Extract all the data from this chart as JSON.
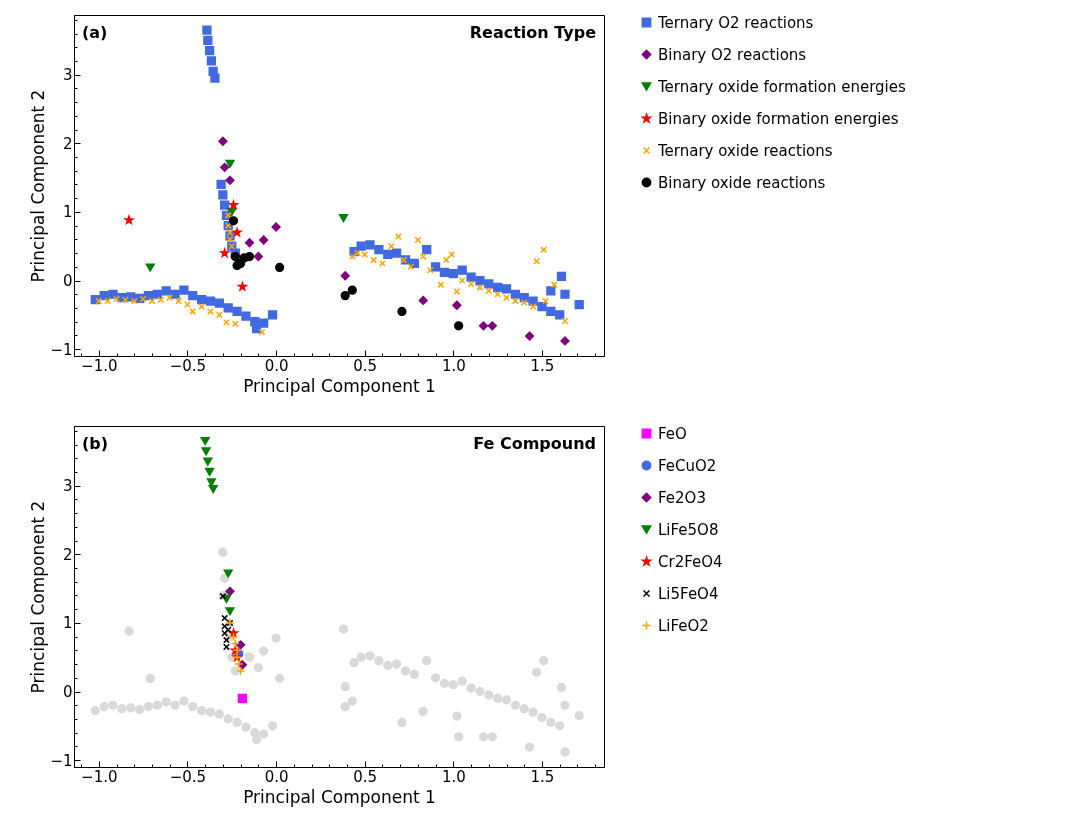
{
  "chart_data": [
    {
      "type": "scatter",
      "title": "Reaction Type",
      "annotations": [
        "(a)"
      ],
      "xlabel": "Principal Component 1",
      "ylabel": "Principal Component 2",
      "legend": "right",
      "xlim": [
        -1.14,
        1.85
      ],
      "ylim": [
        -1.1,
        3.87
      ],
      "xticks": [
        {
          "value": -1.1,
          "label": null
        },
        {
          "value": -1,
          "label": "−1.0"
        },
        {
          "value": -0.9,
          "label": null
        },
        {
          "value": -0.8,
          "label": null
        },
        {
          "value": -0.7,
          "label": null
        },
        {
          "value": -0.6,
          "label": null
        },
        {
          "value": -0.5,
          "label": "−0.5"
        },
        {
          "value": -0.4,
          "label": null
        },
        {
          "value": -0.3,
          "label": null
        },
        {
          "value": -0.2,
          "label": null
        },
        {
          "value": -0.1,
          "label": null
        },
        {
          "value": 0,
          "label": "0.0"
        },
        {
          "value": 0.1,
          "label": null
        },
        {
          "value": 0.2,
          "label": null
        },
        {
          "value": 0.3,
          "label": null
        },
        {
          "value": 0.4,
          "label": null
        },
        {
          "value": 0.5,
          "label": "0.5"
        },
        {
          "value": 0.6,
          "label": null
        },
        {
          "value": 0.7,
          "label": null
        },
        {
          "value": 0.8,
          "label": null
        },
        {
          "value": 0.9,
          "label": null
        },
        {
          "value": 1,
          "label": "1.0"
        },
        {
          "value": 1.1,
          "label": null
        },
        {
          "value": 1.2,
          "label": null
        },
        {
          "value": 1.3,
          "label": null
        },
        {
          "value": 1.4,
          "label": null
        },
        {
          "value": 1.5,
          "label": "1.5"
        },
        {
          "value": 1.6,
          "label": null
        },
        {
          "value": 1.7,
          "label": null
        },
        {
          "value": 1.8,
          "label": null
        }
      ],
      "yticks": [
        {
          "value": -1,
          "label": "−1"
        },
        {
          "value": -0.8,
          "label": null
        },
        {
          "value": -0.6,
          "label": null
        },
        {
          "value": -0.4,
          "label": null
        },
        {
          "value": -0.2,
          "label": null
        },
        0,
        {
          "value": 0.2,
          "label": null
        },
        {
          "value": 0.4,
          "label": null
        },
        {
          "value": 0.6,
          "label": null
        },
        {
          "value": 0.8,
          "label": null
        },
        1,
        {
          "value": 1.2,
          "label": null
        },
        {
          "value": 1.4,
          "label": null
        },
        {
          "value": 1.6,
          "label": null
        },
        {
          "value": 1.8,
          "label": null
        },
        2,
        {
          "value": 2.2,
          "label": null
        },
        {
          "value": 2.4,
          "label": null
        },
        {
          "value": 2.6,
          "label": null
        },
        {
          "value": 2.8,
          "label": null
        },
        3,
        {
          "value": 3.2,
          "label": null
        },
        {
          "value": 3.4,
          "label": null
        },
        {
          "value": 3.6,
          "label": null
        },
        {
          "value": 3.8,
          "label": null
        }
      ],
      "series": [
        {
          "name": "Ternary O2 reactions",
          "color": "#4169e1",
          "marker": "square",
          "x": [
            -0.39,
            -0.385,
            -0.375,
            -0.365,
            -0.355,
            -0.345,
            -0.31,
            -0.3,
            -0.29,
            -0.28,
            -0.27,
            -0.26,
            -0.25,
            -0.23,
            -1.02,
            -0.97,
            -0.92,
            -0.87,
            -0.82,
            -0.77,
            -0.72,
            -0.67,
            -0.62,
            -0.57,
            -0.52,
            -0.47,
            -0.42,
            -0.37,
            -0.32,
            -0.27,
            -0.22,
            -0.17,
            -0.12,
            -0.07,
            -0.11,
            -0.02,
            0.44,
            0.48,
            0.53,
            0.58,
            0.63,
            0.68,
            0.73,
            0.78,
            0.85,
            0.9,
            0.95,
            1.0,
            1.05,
            1.1,
            1.15,
            1.2,
            1.25,
            1.3,
            1.35,
            1.4,
            1.45,
            1.5,
            1.55,
            1.6,
            1.63,
            1.61,
            1.71,
            1.55
          ],
          "values": [
            3.65,
            3.5,
            3.35,
            3.2,
            3.05,
            2.95,
            1.4,
            1.25,
            1.1,
            0.95,
            0.8,
            0.65,
            0.5,
            0.4,
            -0.28,
            -0.22,
            -0.2,
            -0.25,
            -0.24,
            -0.26,
            -0.22,
            -0.2,
            -0.15,
            -0.2,
            -0.14,
            -0.22,
            -0.28,
            -0.3,
            -0.33,
            -0.4,
            -0.45,
            -0.52,
            -0.6,
            -0.62,
            -0.7,
            -0.5,
            0.42,
            0.5,
            0.52,
            0.45,
            0.38,
            0.4,
            0.3,
            0.25,
            0.45,
            0.2,
            0.12,
            0.1,
            0.15,
            0.05,
            0.0,
            -0.05,
            -0.1,
            -0.12,
            -0.2,
            -0.25,
            -0.3,
            -0.38,
            -0.45,
            -0.5,
            -0.2,
            0.06,
            -0.35,
            -0.15
          ]
        },
        {
          "name": "Binary O2 reactions",
          "color": "#800080",
          "marker": "diamond",
          "x": [
            -0.3,
            -0.29,
            -0.26,
            0.0,
            -0.07,
            -0.1,
            -0.15,
            0.39,
            0.83,
            1.02,
            1.17,
            1.22,
            1.43,
            1.63
          ],
          "values": [
            2.03,
            1.65,
            1.46,
            0.78,
            0.59,
            0.35,
            0.55,
            0.07,
            -0.29,
            -0.36,
            -0.66,
            -0.66,
            -0.81,
            -0.88
          ]
        },
        {
          "name": "Ternary oxide formation energies",
          "color": "#008000",
          "marker": "triangle",
          "x": [
            -0.26,
            0.38,
            -0.71,
            -0.25
          ],
          "values": [
            1.7,
            0.91,
            0.19,
            1.0
          ]
        },
        {
          "name": "Binary oxide formation energies",
          "color": "#ff0000",
          "marker": "star",
          "x": [
            -0.83,
            -0.24,
            -0.29,
            -0.19,
            -0.22
          ],
          "values": [
            0.88,
            1.1,
            0.4,
            -0.09,
            0.7
          ]
        },
        {
          "name": "Ternary oxide reactions",
          "color": "#ffa500",
          "marker": "cross",
          "x": [
            -1.0,
            -0.95,
            -0.9,
            -0.85,
            -0.8,
            -0.75,
            -0.7,
            -0.65,
            -0.6,
            -0.55,
            -0.5,
            -0.47,
            -0.42,
            -0.37,
            -0.32,
            -0.28,
            -0.23,
            -0.08,
            -0.27,
            -0.27,
            -0.26,
            -0.26,
            -0.25,
            0.43,
            0.46,
            0.5,
            0.55,
            0.6,
            0.65,
            0.69,
            0.72,
            0.76,
            0.8,
            0.83,
            0.87,
            0.93,
            0.96,
            0.99,
            1.02,
            1.05,
            1.1,
            1.15,
            1.2,
            1.25,
            1.3,
            1.35,
            1.4,
            1.45,
            1.47,
            1.51,
            1.52,
            1.57,
            1.63
          ],
          "values": [
            -0.3,
            -0.3,
            -0.27,
            -0.28,
            -0.3,
            -0.27,
            -0.3,
            -0.28,
            -0.25,
            -0.3,
            -0.35,
            -0.45,
            -0.38,
            -0.45,
            -0.5,
            -0.61,
            -0.63,
            -0.75,
            0.95,
            0.8,
            0.7,
            0.6,
            0.5,
            0.35,
            0.4,
            0.38,
            0.3,
            0.25,
            0.5,
            0.64,
            0.3,
            0.2,
            0.59,
            0.35,
            0.15,
            -0.06,
            0.3,
            0.38,
            -0.16,
            0.0,
            -0.05,
            -0.1,
            -0.15,
            -0.2,
            -0.25,
            -0.3,
            -0.32,
            -0.38,
            0.28,
            0.45,
            -0.3,
            -0.06,
            -0.59
          ]
        },
        {
          "name": "Binary oxide reactions",
          "color": "#000000",
          "marker": "circle",
          "x": [
            -0.24,
            -0.23,
            -0.18,
            -0.15,
            -0.2,
            -0.22,
            0.02,
            0.43,
            0.39,
            0.71,
            1.03
          ],
          "values": [
            0.87,
            0.35,
            0.33,
            0.35,
            0.25,
            0.22,
            0.19,
            -0.14,
            -0.22,
            -0.45,
            -0.66
          ]
        }
      ]
    },
    {
      "type": "scatter",
      "title": "Fe Compound",
      "annotations": [
        "(b)"
      ],
      "xlabel": "Principal Component 1",
      "ylabel": "Principal Component 2",
      "legend": "right",
      "xlim": [
        -1.14,
        1.85
      ],
      "ylim": [
        -1.1,
        3.87
      ],
      "xticks": [
        {
          "value": -1.1,
          "label": null
        },
        {
          "value": -1,
          "label": "−1.0"
        },
        {
          "value": -0.9,
          "label": null
        },
        {
          "value": -0.8,
          "label": null
        },
        {
          "value": -0.7,
          "label": null
        },
        {
          "value": -0.6,
          "label": null
        },
        {
          "value": -0.5,
          "label": "−0.5"
        },
        {
          "value": -0.4,
          "label": null
        },
        {
          "value": -0.3,
          "label": null
        },
        {
          "value": -0.2,
          "label": null
        },
        {
          "value": -0.1,
          "label": null
        },
        {
          "value": 0,
          "label": "0.0"
        },
        {
          "value": 0.1,
          "label": null
        },
        {
          "value": 0.2,
          "label": null
        },
        {
          "value": 0.3,
          "label": null
        },
        {
          "value": 0.4,
          "label": null
        },
        {
          "value": 0.5,
          "label": "0.5"
        },
        {
          "value": 0.6,
          "label": null
        },
        {
          "value": 0.7,
          "label": null
        },
        {
          "value": 0.8,
          "label": null
        },
        {
          "value": 0.9,
          "label": null
        },
        {
          "value": 1,
          "label": "1.0"
        },
        {
          "value": 1.1,
          "label": null
        },
        {
          "value": 1.2,
          "label": null
        },
        {
          "value": 1.3,
          "label": null
        },
        {
          "value": 1.4,
          "label": null
        },
        {
          "value": 1.5,
          "label": "1.5"
        },
        {
          "value": 1.6,
          "label": null
        },
        {
          "value": 1.7,
          "label": null
        },
        {
          "value": 1.8,
          "label": null
        }
      ],
      "yticks": [
        {
          "value": -1,
          "label": "−1"
        },
        {
          "value": -0.8,
          "label": null
        },
        {
          "value": -0.6,
          "label": null
        },
        {
          "value": -0.4,
          "label": null
        },
        {
          "value": -0.2,
          "label": null
        },
        0,
        {
          "value": 0.2,
          "label": null
        },
        {
          "value": 0.4,
          "label": null
        },
        {
          "value": 0.6,
          "label": null
        },
        {
          "value": 0.8,
          "label": null
        },
        1,
        {
          "value": 1.2,
          "label": null
        },
        {
          "value": 1.4,
          "label": null
        },
        {
          "value": 1.6,
          "label": null
        },
        {
          "value": 1.8,
          "label": null
        },
        2,
        {
          "value": 2.2,
          "label": null
        },
        {
          "value": 2.4,
          "label": null
        },
        {
          "value": 2.6,
          "label": null
        },
        {
          "value": 2.8,
          "label": null
        },
        3,
        {
          "value": 3.2,
          "label": null
        },
        {
          "value": 3.4,
          "label": null
        },
        {
          "value": 3.6,
          "label": null
        },
        {
          "value": 3.8,
          "label": null
        }
      ],
      "series": [
        {
          "color": "#d9d9d9",
          "marker": "circle",
          "x": [
            -1.02,
            -0.97,
            -0.92,
            -0.87,
            -0.82,
            -0.77,
            -0.72,
            -0.67,
            -0.62,
            -0.57,
            -0.52,
            -0.47,
            -0.42,
            -0.37,
            -0.32,
            -0.27,
            -0.22,
            -0.17,
            -0.12,
            -0.07,
            -0.11,
            -0.02,
            -0.3,
            -0.29,
            -0.26,
            -0.25,
            -0.23,
            -0.15,
            -0.1,
            -0.07,
            -0.83,
            -0.71,
            0.38,
            0.0,
            0.02,
            -0.3,
            0.39,
            0.43,
            0.39,
            0.71,
            0.83,
            1.02,
            1.03,
            1.17,
            1.22,
            1.43,
            1.63,
            0.44,
            0.48,
            0.53,
            0.58,
            0.63,
            0.68,
            0.73,
            0.78,
            0.85,
            0.9,
            0.95,
            1.0,
            1.05,
            1.1,
            1.15,
            1.2,
            1.25,
            1.3,
            1.35,
            1.4,
            1.45,
            1.5,
            1.55,
            1.6,
            1.63,
            1.61,
            1.71,
            1.51,
            1.47
          ],
          "values": [
            -0.28,
            -0.22,
            -0.2,
            -0.25,
            -0.24,
            -0.26,
            -0.22,
            -0.2,
            -0.15,
            -0.2,
            -0.14,
            -0.22,
            -0.28,
            -0.3,
            -0.33,
            -0.4,
            -0.45,
            -0.52,
            -0.6,
            -0.62,
            -0.7,
            -0.5,
            2.03,
            1.65,
            0.8,
            0.5,
            0.3,
            0.5,
            0.35,
            0.59,
            0.88,
            0.19,
            0.91,
            0.78,
            0.19,
            1.4,
            0.07,
            -0.14,
            -0.22,
            -0.45,
            -0.29,
            -0.36,
            -0.66,
            -0.66,
            -0.66,
            -0.81,
            -0.88,
            0.42,
            0.5,
            0.52,
            0.45,
            0.38,
            0.4,
            0.3,
            0.25,
            0.45,
            0.2,
            0.12,
            0.1,
            0.15,
            0.05,
            0.0,
            -0.05,
            -0.1,
            -0.12,
            -0.2,
            -0.25,
            -0.3,
            -0.38,
            -0.45,
            -0.5,
            -0.2,
            0.06,
            -0.35,
            0.45,
            0.28
          ]
        },
        {
          "name": "FeO",
          "color": "#ff00ff",
          "marker": "square",
          "x": [
            -0.19
          ],
          "values": [
            -0.1
          ]
        },
        {
          "name": "FeCuO2",
          "color": "#4169e1",
          "marker": "circle",
          "x": [
            -0.21
          ],
          "values": [
            0.55
          ]
        },
        {
          "name": "Fe2O3",
          "color": "#800080",
          "marker": "diamond",
          "x": [
            -0.26,
            -0.2,
            -0.19
          ],
          "values": [
            1.46,
            0.68,
            0.39
          ]
        },
        {
          "name": "LiFe5O8",
          "color": "#008000",
          "marker": "triangle",
          "x": [
            -0.4,
            -0.395,
            -0.385,
            -0.375,
            -0.365,
            -0.355,
            -0.27,
            -0.28,
            -0.26
          ],
          "values": [
            3.65,
            3.5,
            3.35,
            3.2,
            3.05,
            2.95,
            1.72,
            1.35,
            1.17
          ]
        },
        {
          "name": "Cr2FeO4",
          "color": "#ff0000",
          "marker": "star",
          "x": [
            -0.24,
            -0.23,
            -0.22
          ],
          "values": [
            0.85,
            0.6,
            0.5
          ]
        },
        {
          "name": "Li5FeO4",
          "color": "#000000",
          "marker": "cross",
          "x": [
            -0.3,
            -0.29,
            -0.29,
            -0.29,
            -0.28,
            -0.28,
            -0.27,
            -0.26
          ],
          "values": [
            1.39,
            1.07,
            0.95,
            0.85,
            0.75,
            0.65,
            0.9,
            1.0
          ]
        },
        {
          "name": "LiFeO2",
          "color": "#ffa500",
          "marker": "plus",
          "x": [
            -0.26,
            -0.24,
            -0.23,
            -0.22,
            -0.22,
            -0.21,
            -0.2
          ],
          "values": [
            1.0,
            0.8,
            0.7,
            0.6,
            0.5,
            0.4,
            0.3
          ]
        }
      ]
    }
  ]
}
